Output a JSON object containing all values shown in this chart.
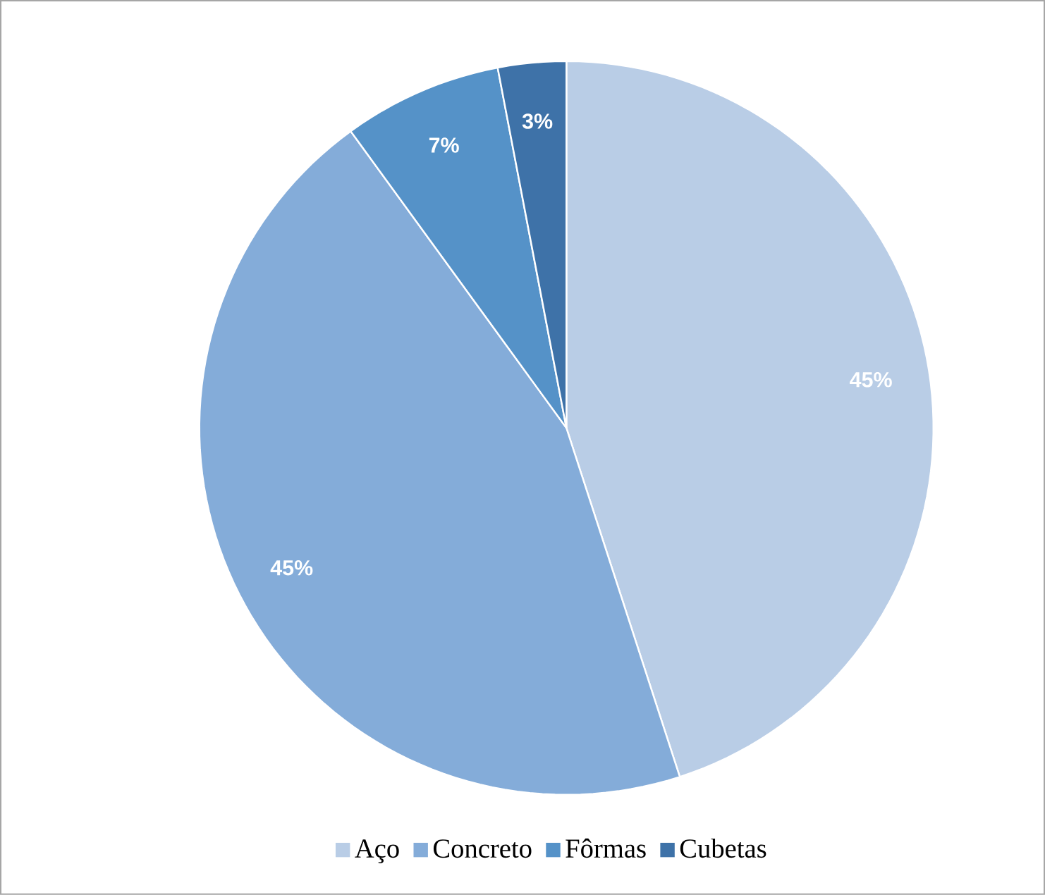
{
  "chart_data": {
    "type": "pie",
    "categories": [
      "Aço",
      "Concreto",
      "Fôrmas",
      "Cubetas"
    ],
    "values": [
      45,
      45,
      7,
      3
    ],
    "colors": [
      "#b9cde6",
      "#84acd9",
      "#5592c8",
      "#3e72a8"
    ],
    "value_labels": [
      "45%",
      "45%",
      "7%",
      "3%"
    ],
    "legend": "bottom"
  }
}
